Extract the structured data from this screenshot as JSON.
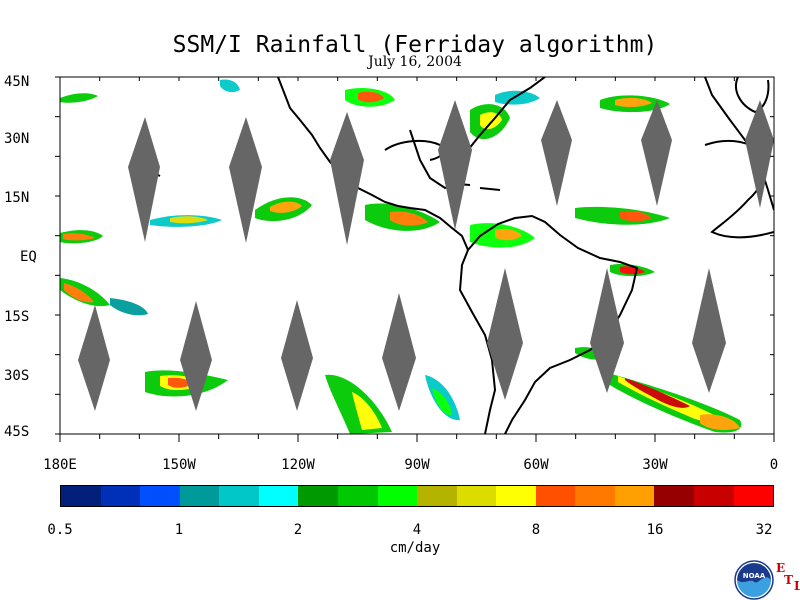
{
  "title": "SSM/I Rainfall (Ferriday algorithm)",
  "subtitle": "July 16, 2004",
  "lat_labels": [
    "45N",
    "30N",
    "15N",
    "EQ",
    "15S",
    "30S",
    "45S"
  ],
  "lon_labels": [
    "180E",
    "150W",
    "120W",
    "90W",
    "60W",
    "30W",
    "0"
  ],
  "colorbar": {
    "colors": [
      "#00207a",
      "#0030b8",
      "#0050ff",
      "#009a9a",
      "#00c8c8",
      "#00ffff",
      "#009a00",
      "#00c800",
      "#00ff00",
      "#b4b400",
      "#dcdc00",
      "#ffff00",
      "#ff5000",
      "#ff7800",
      "#ffa000",
      "#960000",
      "#c80000",
      "#ff0000"
    ],
    "tick_labels": [
      "0.5",
      "1",
      "2",
      "4",
      "8",
      "16",
      "32"
    ],
    "units": "cm/day"
  },
  "logo": {
    "icon": "noaa-logo-icon",
    "text": "NOAA",
    "letters": [
      "E",
      "T",
      "L"
    ]
  }
}
